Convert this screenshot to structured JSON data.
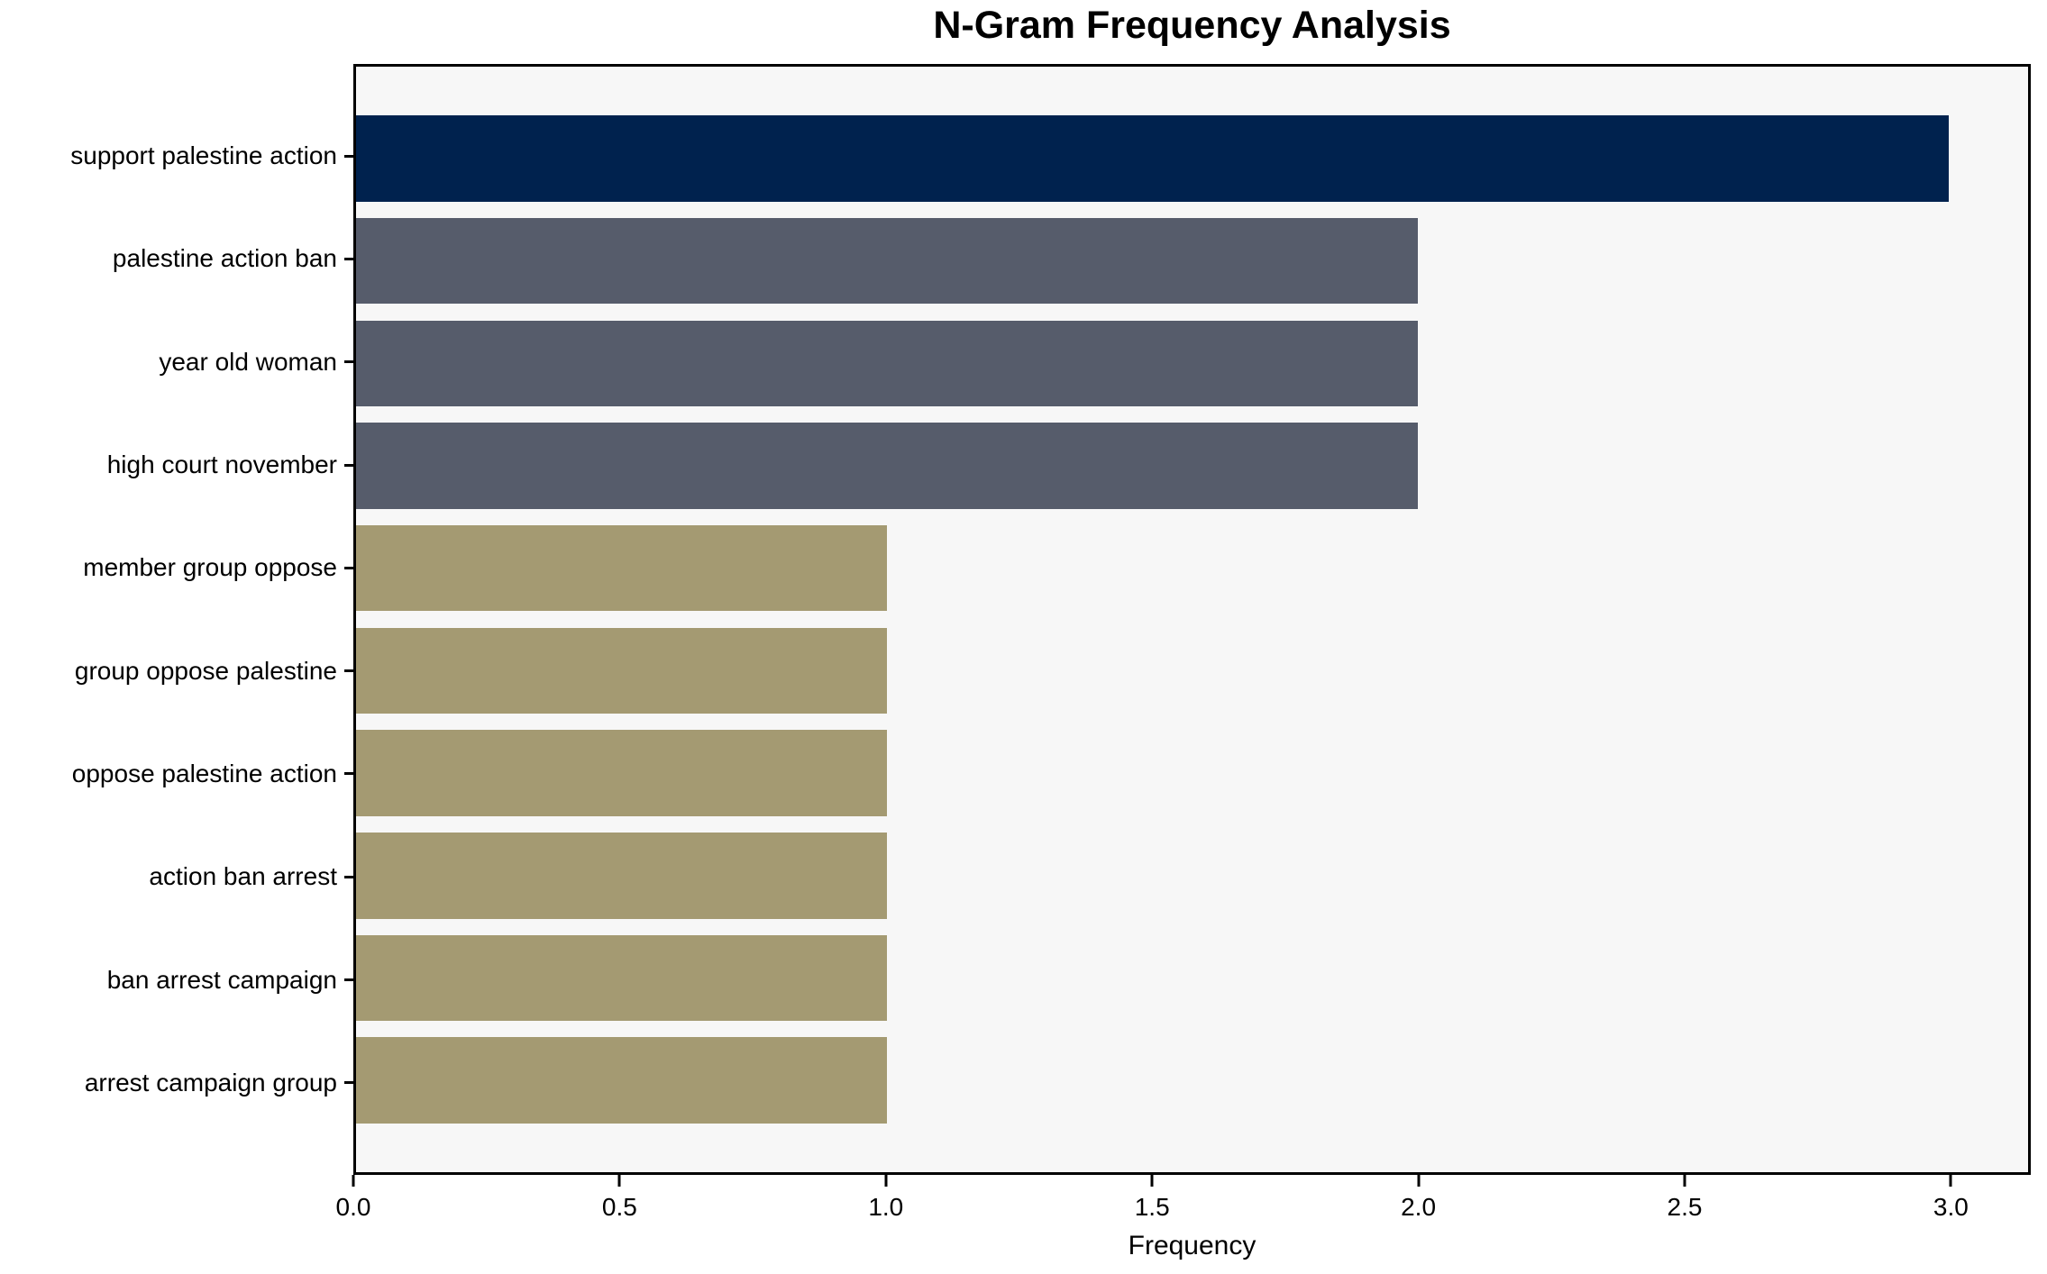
{
  "title": "N-Gram Frequency Analysis",
  "chart_data": {
    "type": "bar",
    "orientation": "horizontal",
    "title": "N-Gram Frequency Analysis",
    "xlabel": "Frequency",
    "ylabel": "",
    "categories": [
      "support palestine action",
      "palestine action ban",
      "year old woman",
      "high court november",
      "member group oppose",
      "group oppose palestine",
      "oppose palestine action",
      "action ban arrest",
      "ban arrest campaign",
      "arrest campaign group"
    ],
    "values": [
      3,
      2,
      2,
      2,
      1,
      1,
      1,
      1,
      1,
      1
    ],
    "bar_colors": [
      "#00224E",
      "#565C6B",
      "#565C6B",
      "#565C6B",
      "#A49A72",
      "#A49A72",
      "#A49A72",
      "#A49A72",
      "#A49A72",
      "#A49A72"
    ],
    "xlim": [
      0,
      3.15
    ],
    "x_ticks": [
      0.0,
      0.5,
      1.0,
      1.5,
      2.0,
      2.5,
      3.0
    ],
    "x_tick_labels": [
      "0.0",
      "0.5",
      "1.0",
      "1.5",
      "2.0",
      "2.5",
      "3.0"
    ],
    "grid": false,
    "legend": null,
    "colors": {
      "highlight": "#00224E",
      "secondary": "#565C6B",
      "base": "#A49A72",
      "plot_background": "#F7F7F7",
      "figure_background": "#FFFFFF",
      "spine": "#000000",
      "text": "#000000"
    }
  }
}
